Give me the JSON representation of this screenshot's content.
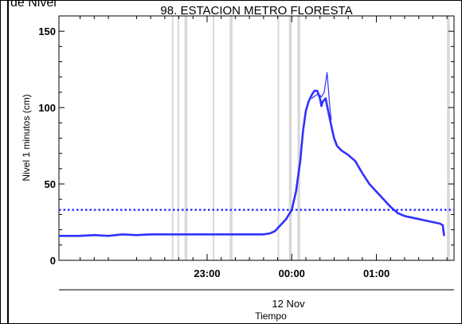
{
  "header": {
    "cutoff_text": "de Nivel"
  },
  "chart_data": {
    "type": "line",
    "title": "98. ESTACION METRO FLORESTA",
    "ylabel": "Nivel 1 minutos (cm)",
    "xlabel": "Tiempo",
    "date_label": "12 Nov",
    "ylim": [
      0,
      160
    ],
    "xlim": [
      -165,
      115
    ],
    "y_ticks": [
      0,
      50,
      100,
      150
    ],
    "x_ticks": [
      {
        "label": "23:00",
        "minutes": -60
      },
      {
        "label": "00:00",
        "minutes": 0
      },
      {
        "label": "01:00",
        "minutes": 60
      }
    ],
    "threshold": {
      "value": 33,
      "color": "#3030ff",
      "style": "dotted"
    },
    "series_color": "#3030ff",
    "gap_color": "#d9d9d9",
    "data_gaps_minutes": [
      [
        -85,
        -84
      ],
      [
        -81,
        -80
      ],
      [
        -76,
        -74
      ],
      [
        -56,
        -55
      ],
      [
        -44,
        -42
      ],
      [
        -10,
        -9
      ],
      [
        -2,
        0
      ],
      [
        4,
        6
      ],
      [
        110,
        112
      ]
    ],
    "series": [
      {
        "points": [
          [
            -165,
            16
          ],
          [
            -150,
            16
          ],
          [
            -140,
            16.5
          ],
          [
            -130,
            16
          ],
          [
            -120,
            17
          ],
          [
            -110,
            16.5
          ],
          [
            -100,
            17
          ],
          [
            -90,
            17
          ],
          [
            -80,
            17
          ],
          [
            -70,
            17
          ],
          [
            -60,
            17
          ],
          [
            -50,
            17
          ],
          [
            -40,
            17
          ],
          [
            -30,
            17
          ],
          [
            -20,
            17
          ],
          [
            -16,
            17.5
          ],
          [
            -12,
            19
          ],
          [
            -8,
            23
          ],
          [
            -4,
            27
          ],
          [
            0,
            33
          ],
          [
            3,
            45
          ],
          [
            6,
            65
          ],
          [
            8,
            85
          ],
          [
            10,
            98
          ],
          [
            12,
            104
          ],
          [
            14,
            108
          ],
          [
            16,
            111
          ],
          [
            18,
            111
          ],
          [
            20,
            106
          ],
          [
            21,
            101
          ],
          [
            22,
            104
          ],
          [
            24,
            106
          ],
          [
            26,
            97
          ],
          [
            28,
            88
          ],
          [
            30,
            80
          ],
          [
            32,
            75
          ],
          [
            35,
            72
          ],
          [
            40,
            69
          ],
          [
            45,
            65
          ],
          [
            50,
            57
          ],
          [
            55,
            50
          ],
          [
            60,
            45
          ],
          [
            65,
            40
          ],
          [
            70,
            35
          ],
          [
            75,
            31
          ],
          [
            80,
            29
          ],
          [
            85,
            28
          ],
          [
            90,
            27
          ],
          [
            95,
            26
          ],
          [
            100,
            25
          ],
          [
            105,
            24
          ],
          [
            107,
            23
          ],
          [
            108,
            16
          ]
        ]
      },
      {
        "points": [
          [
            14,
            106
          ],
          [
            17,
            108
          ],
          [
            19,
            109
          ],
          [
            21,
            107
          ],
          [
            23,
            110
          ],
          [
            25,
            123
          ],
          [
            26,
            112
          ],
          [
            27,
            100
          ],
          [
            28,
            92
          ]
        ]
      }
    ]
  }
}
